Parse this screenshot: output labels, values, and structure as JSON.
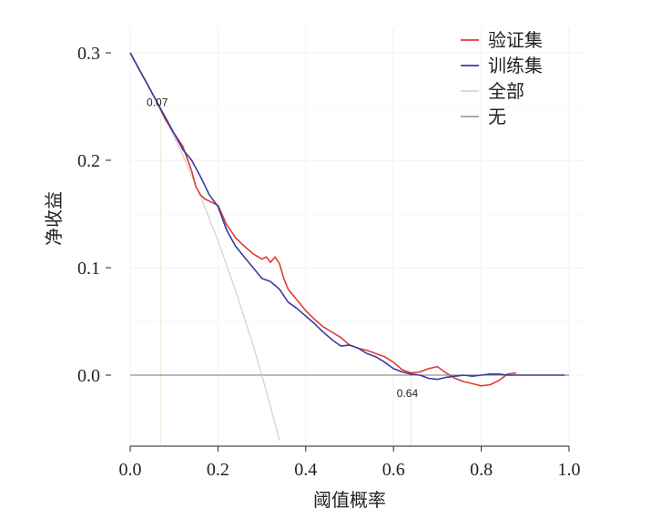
{
  "chart_data": {
    "type": "line",
    "title": "",
    "xlabel": "阈值概率",
    "ylabel": "净收益",
    "xlim": [
      0,
      1
    ],
    "ylim": [
      -0.065,
      0.3
    ],
    "xticks": [
      "0.0",
      "0.2",
      "0.4",
      "0.6",
      "0.8",
      "1.0"
    ],
    "yticks": [
      "0.0",
      "0.1",
      "0.2",
      "0.3"
    ],
    "xtick_values": [
      0,
      0.2,
      0.4,
      0.6,
      0.8,
      1.0
    ],
    "ytick_values": [
      0,
      0.1,
      0.2,
      0.3
    ],
    "grid": true,
    "legend_position": "top-right",
    "series": [
      {
        "name": "验证集",
        "color": "#e03c31",
        "x": [
          0,
          0.02,
          0.04,
          0.06,
          0.08,
          0.1,
          0.12,
          0.14,
          0.15,
          0.16,
          0.17,
          0.18,
          0.2,
          0.22,
          0.24,
          0.26,
          0.28,
          0.3,
          0.31,
          0.32,
          0.33,
          0.34,
          0.35,
          0.36,
          0.37,
          0.38,
          0.39,
          0.4,
          0.42,
          0.44,
          0.46,
          0.48,
          0.5,
          0.52,
          0.54,
          0.56,
          0.58,
          0.6,
          0.62,
          0.64,
          0.66,
          0.68,
          0.7,
          0.72,
          0.74,
          0.76,
          0.78,
          0.8,
          0.82,
          0.84,
          0.86,
          0.88
        ],
        "y": [
          0.3,
          0.285,
          0.27,
          0.255,
          0.238,
          0.225,
          0.213,
          0.19,
          0.175,
          0.168,
          0.164,
          0.162,
          0.158,
          0.14,
          0.128,
          0.12,
          0.113,
          0.108,
          0.11,
          0.105,
          0.11,
          0.104,
          0.09,
          0.08,
          0.075,
          0.07,
          0.065,
          0.06,
          0.052,
          0.045,
          0.04,
          0.035,
          0.028,
          0.025,
          0.023,
          0.02,
          0.017,
          0.012,
          0.005,
          0.002,
          0.003,
          0.006,
          0.008,
          0.002,
          -0.003,
          -0.006,
          -0.008,
          -0.01,
          -0.009,
          -0.005,
          0.001,
          0.002
        ]
      },
      {
        "name": "训练集",
        "color": "#3a3aa0",
        "x": [
          0,
          0.02,
          0.04,
          0.06,
          0.08,
          0.1,
          0.12,
          0.14,
          0.16,
          0.18,
          0.2,
          0.22,
          0.24,
          0.26,
          0.28,
          0.3,
          0.32,
          0.34,
          0.36,
          0.38,
          0.4,
          0.42,
          0.44,
          0.46,
          0.48,
          0.5,
          0.52,
          0.54,
          0.56,
          0.58,
          0.6,
          0.62,
          0.64,
          0.66,
          0.68,
          0.7,
          0.72,
          0.74,
          0.76,
          0.78,
          0.8,
          0.82,
          0.84,
          0.86,
          0.88,
          0.9,
          0.95,
          0.99
        ],
        "y": [
          0.3,
          0.285,
          0.27,
          0.255,
          0.24,
          0.225,
          0.21,
          0.2,
          0.185,
          0.168,
          0.157,
          0.135,
          0.12,
          0.11,
          0.1,
          0.09,
          0.087,
          0.08,
          0.068,
          0.062,
          0.055,
          0.048,
          0.04,
          0.033,
          0.027,
          0.028,
          0.025,
          0.02,
          0.017,
          0.012,
          0.006,
          0.003,
          0.001,
          0.0,
          -0.003,
          -0.004,
          -0.002,
          -0.001,
          0.0,
          -0.001,
          0.0,
          0.001,
          0.001,
          0.0,
          0.0,
          0.0,
          0.0,
          0.0
        ]
      },
      {
        "name": "全部",
        "color": "#c8c8c8",
        "x": [
          0,
          0.04,
          0.08,
          0.12,
          0.16,
          0.2,
          0.24,
          0.28,
          0.3,
          0.32,
          0.34
        ],
        "y": [
          0.3,
          0.2708,
          0.2391,
          0.2045,
          0.1667,
          0.125,
          0.0789,
          0.0278,
          0.0,
          -0.0294,
          -0.0606
        ]
      },
      {
        "name": "无",
        "color": "#777777",
        "x": [
          0,
          1
        ],
        "y": [
          0,
          0
        ]
      }
    ],
    "annotations": [
      {
        "text": "0.07",
        "x": 0.07
      },
      {
        "text": "0.64",
        "x": 0.64
      }
    ]
  }
}
